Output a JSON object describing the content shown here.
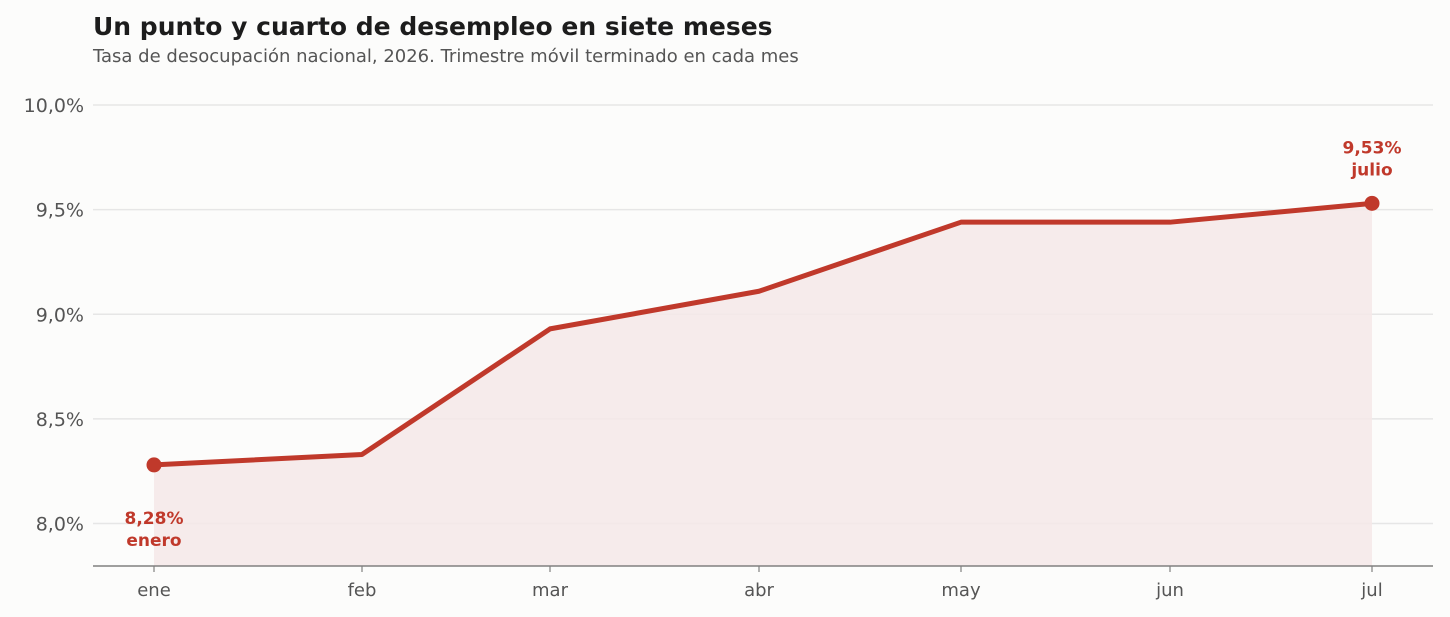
{
  "chart_data": {
    "type": "line",
    "title": "Un punto y cuarto de desempleo en siete meses",
    "subtitle": "Tasa de desocupación nacional, 2026. Trimestre móvil terminado en cada mes",
    "xlabel": "",
    "ylabel": "",
    "categories": [
      "ene",
      "feb",
      "mar",
      "abr",
      "may",
      "jun",
      "jul"
    ],
    "series": [
      {
        "values": [
          8.28,
          8.33,
          8.93,
          9.11,
          9.44,
          9.44,
          9.53
        ]
      }
    ],
    "ylim": [
      7.8,
      10.0
    ],
    "yticks": [
      8.0,
      8.5,
      9.0,
      9.5,
      10.0
    ],
    "ytick_labels": [
      "8,0%",
      "8,5%",
      "9,0%",
      "9,5%",
      "10,0%"
    ],
    "grid": "horizontal",
    "area_fill": true,
    "annotations": [
      {
        "index": 0,
        "value_label": "8,28%",
        "month_label": "enero",
        "position": "below"
      },
      {
        "index": 6,
        "value_label": "9,53%",
        "month_label": "julio",
        "position": "above"
      }
    ],
    "colors": {
      "line": "#c0392b",
      "area": "#f5e8e7",
      "grid": "#e6e6e6",
      "axis": "#808080",
      "tick_text": "#555555",
      "background": "#fcfcfb"
    }
  }
}
